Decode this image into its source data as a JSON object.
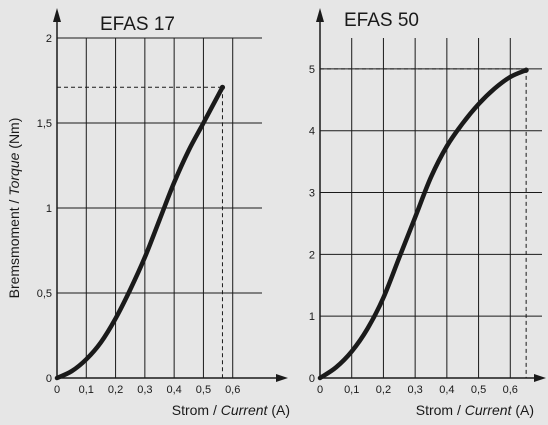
{
  "y_label": {
    "main": "Bremsmoment",
    "sep": " / ",
    "italic": "Torque",
    "unit": " (Nm)"
  },
  "chart_data": [
    {
      "type": "line",
      "title": "EFAS 17",
      "xlabel": {
        "main": "Strom",
        "sep": " / ",
        "italic": "Current",
        "unit": " (A)"
      },
      "x_ticks": [
        "0",
        "0,1",
        "0,2",
        "0,3",
        "0,4",
        "0,5",
        "0,6"
      ],
      "y_ticks": [
        "0",
        "0,5",
        "1",
        "1,5",
        "2"
      ],
      "xlim": [
        0,
        0.7
      ],
      "ylim": [
        0,
        2
      ],
      "grid": true,
      "reference": {
        "x": 0.565,
        "y": 1.71
      },
      "series": [
        {
          "x": [
            0,
            0.05,
            0.1,
            0.15,
            0.2,
            0.25,
            0.3,
            0.35,
            0.4,
            0.45,
            0.5,
            0.565
          ],
          "y": [
            0,
            0.04,
            0.11,
            0.21,
            0.35,
            0.52,
            0.71,
            0.93,
            1.15,
            1.34,
            1.5,
            1.71
          ]
        }
      ]
    },
    {
      "type": "line",
      "title": "EFAS 50",
      "xlabel": {
        "main": "Strom",
        "sep": " / ",
        "italic": "Current",
        "unit": " (A)"
      },
      "x_ticks": [
        "0",
        "0,1",
        "0,2",
        "0,3",
        "0,4",
        "0,5",
        "0,6"
      ],
      "y_ticks": [
        "0",
        "1",
        "2",
        "3",
        "4",
        "5"
      ],
      "xlim": [
        0,
        0.7
      ],
      "ylim": [
        0,
        5.5
      ],
      "grid": true,
      "reference": {
        "x": 0.65,
        "y": 5
      },
      "series": [
        {
          "x": [
            0,
            0.05,
            0.1,
            0.15,
            0.2,
            0.25,
            0.3,
            0.35,
            0.4,
            0.45,
            0.5,
            0.55,
            0.6,
            0.65
          ],
          "y": [
            0,
            0.17,
            0.43,
            0.8,
            1.3,
            1.95,
            2.6,
            3.25,
            3.75,
            4.12,
            4.43,
            4.68,
            4.87,
            4.98
          ]
        }
      ]
    }
  ]
}
